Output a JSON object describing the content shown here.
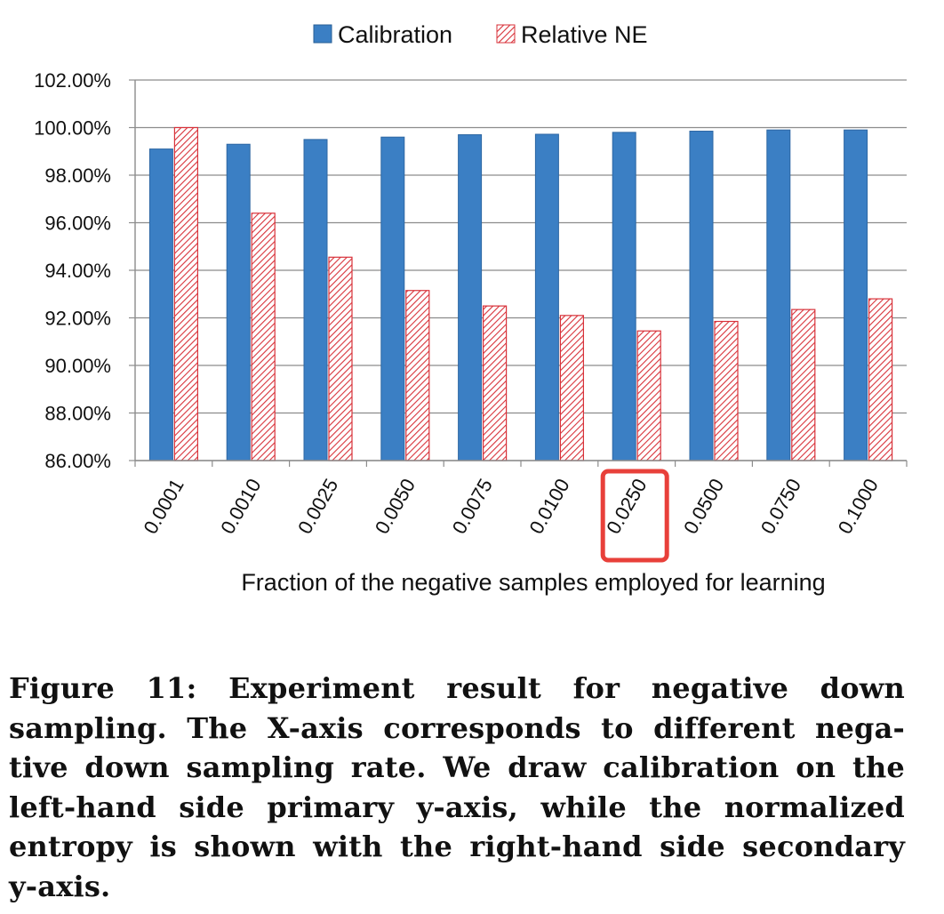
{
  "chart_data": {
    "type": "bar",
    "categories": [
      "0.0001",
      "0.0010",
      "0.0025",
      "0.0050",
      "0.0075",
      "0.0100",
      "0.0250",
      "0.0500",
      "0.0750",
      "0.1000"
    ],
    "series": [
      {
        "name": "Calibration",
        "values": [
          99.1,
          99.3,
          99.5,
          99.6,
          99.7,
          99.72,
          99.8,
          99.85,
          99.9,
          99.9
        ],
        "color": "#3b7fc4",
        "pattern": "solid"
      },
      {
        "name": "Relative NE",
        "values": [
          100.0,
          96.4,
          94.55,
          93.15,
          92.5,
          92.1,
          91.45,
          91.85,
          92.35,
          92.8
        ],
        "color": "#d8323a",
        "pattern": "hatched"
      }
    ],
    "ylim": [
      86,
      102
    ],
    "yticks": [
      "102.00%",
      "100.00%",
      "98.00%",
      "96.00%",
      "94.00%",
      "92.00%",
      "90.00%",
      "88.00%",
      "86.00%"
    ],
    "xlabel": "Fraction of the negative samples employed for learning",
    "legend_position": "top",
    "grid": true,
    "highlighted_category": "0.0250",
    "highlight_color": "#e8403a"
  },
  "caption": {
    "lines": [
      "Figure 11:  Experiment result for negative down",
      "sampling. The X-axis corresponds to different nega-",
      "tive down sampling rate. We draw calibration on the",
      "left-hand side primary y-axis, while the normalized",
      "entropy is shown with the right-hand side secondary",
      "y-axis."
    ]
  }
}
